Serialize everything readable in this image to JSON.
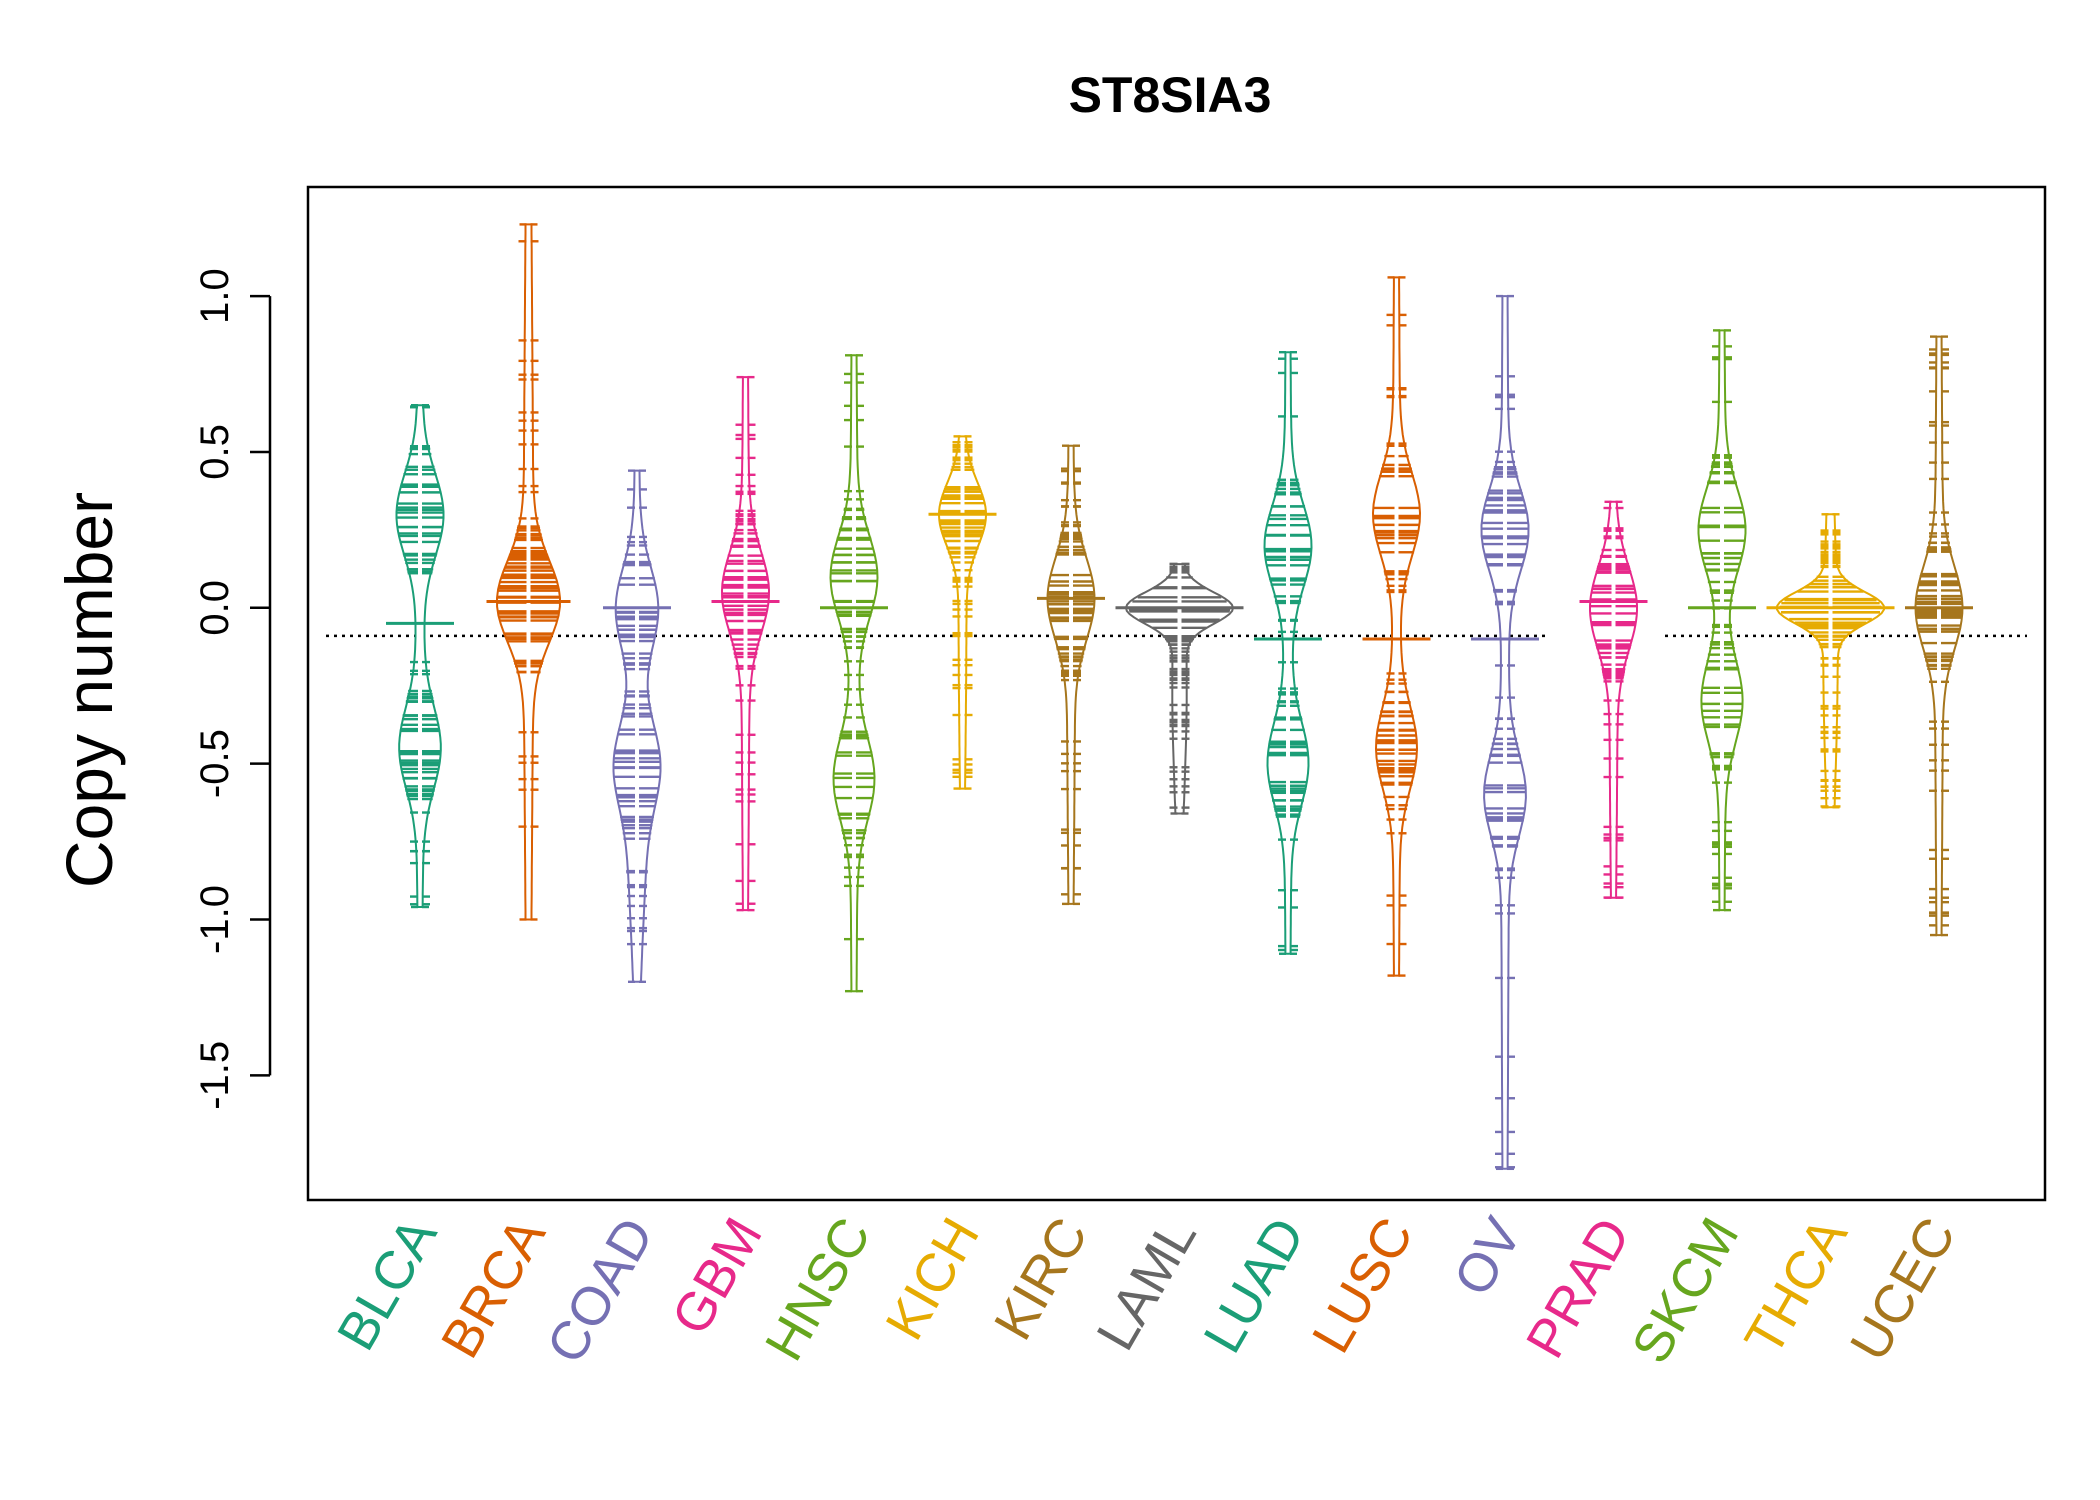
{
  "chart_data": {
    "type": "beanplot",
    "title": "ST8SIA3",
    "xlabel": "",
    "ylabel": "Copy number",
    "ylim": [
      -1.9,
      1.35
    ],
    "yticks": [
      1.0,
      0.5,
      0.0,
      -0.5,
      -1.0,
      -1.5
    ],
    "ytick_labels": [
      "1.0",
      "0.5",
      "0.0",
      "-0.5",
      "-1.0",
      "-1.5"
    ],
    "reference_line": -0.09,
    "grid": false,
    "legend": "none",
    "categories": [
      "BLCA",
      "BRCA",
      "COAD",
      "GBM",
      "HNSC",
      "KICH",
      "KIRC",
      "LAML",
      "LUAD",
      "LUSC",
      "OV",
      "PRAD",
      "SKCM",
      "THCA",
      "UCEC"
    ],
    "colors": [
      "#1B9E77",
      "#D95F02",
      "#7570B3",
      "#E7298A",
      "#66A61E",
      "#E6AB02",
      "#A6761D",
      "#666666",
      "#1B9E77",
      "#D95F02",
      "#7570B3",
      "#E7298A",
      "#66A61E",
      "#E6AB02",
      "#A6761D"
    ],
    "series": [
      {
        "category": "BLCA",
        "min": -0.96,
        "max": 0.65,
        "mean": -0.05,
        "shape": "bimodal",
        "modes": [
          0.3,
          -0.45
        ]
      },
      {
        "category": "BRCA",
        "min": -1.0,
        "max": 1.23,
        "mean": 0.02,
        "shape": "wide",
        "modes": [
          0.02
        ]
      },
      {
        "category": "COAD",
        "min": -1.2,
        "max": 0.44,
        "mean": 0.0,
        "shape": "skew-down",
        "modes": [
          0.0,
          -0.5
        ]
      },
      {
        "category": "GBM",
        "min": -0.97,
        "max": 0.74,
        "mean": 0.02,
        "shape": "unimodal",
        "modes": [
          0.05
        ]
      },
      {
        "category": "HNSC",
        "min": -1.23,
        "max": 0.81,
        "mean": 0.0,
        "shape": "bimodal",
        "modes": [
          0.1,
          -0.55
        ]
      },
      {
        "category": "KICH",
        "min": -0.58,
        "max": 0.55,
        "mean": 0.3,
        "shape": "peak-high",
        "modes": [
          0.3
        ]
      },
      {
        "category": "KIRC",
        "min": -0.95,
        "max": 0.52,
        "mean": 0.03,
        "shape": "unimodal",
        "modes": [
          0.03
        ]
      },
      {
        "category": "LAML",
        "min": -0.66,
        "max": 0.14,
        "mean": 0.0,
        "shape": "narrow",
        "modes": [
          0.0
        ]
      },
      {
        "category": "LUAD",
        "min": -1.11,
        "max": 0.82,
        "mean": -0.1,
        "shape": "bimodal",
        "modes": [
          0.2,
          -0.5
        ]
      },
      {
        "category": "LUSC",
        "min": -1.18,
        "max": 1.06,
        "mean": -0.1,
        "shape": "bimodal",
        "modes": [
          0.3,
          -0.45
        ]
      },
      {
        "category": "OV",
        "min": -1.8,
        "max": 1.0,
        "mean": -0.1,
        "shape": "bimodal",
        "modes": [
          0.25,
          -0.6
        ]
      },
      {
        "category": "PRAD",
        "min": -0.93,
        "max": 0.34,
        "mean": 0.02,
        "shape": "unimodal",
        "modes": [
          0.0
        ]
      },
      {
        "category": "SKCM",
        "min": -0.97,
        "max": 0.89,
        "mean": 0.0,
        "shape": "bimodal",
        "modes": [
          0.25,
          -0.3
        ]
      },
      {
        "category": "THCA",
        "min": -0.64,
        "max": 0.3,
        "mean": 0.0,
        "shape": "narrow",
        "modes": [
          0.0
        ]
      },
      {
        "category": "UCEC",
        "min": -1.05,
        "max": 0.87,
        "mean": 0.0,
        "shape": "unimodal",
        "modes": [
          0.0
        ]
      }
    ]
  }
}
